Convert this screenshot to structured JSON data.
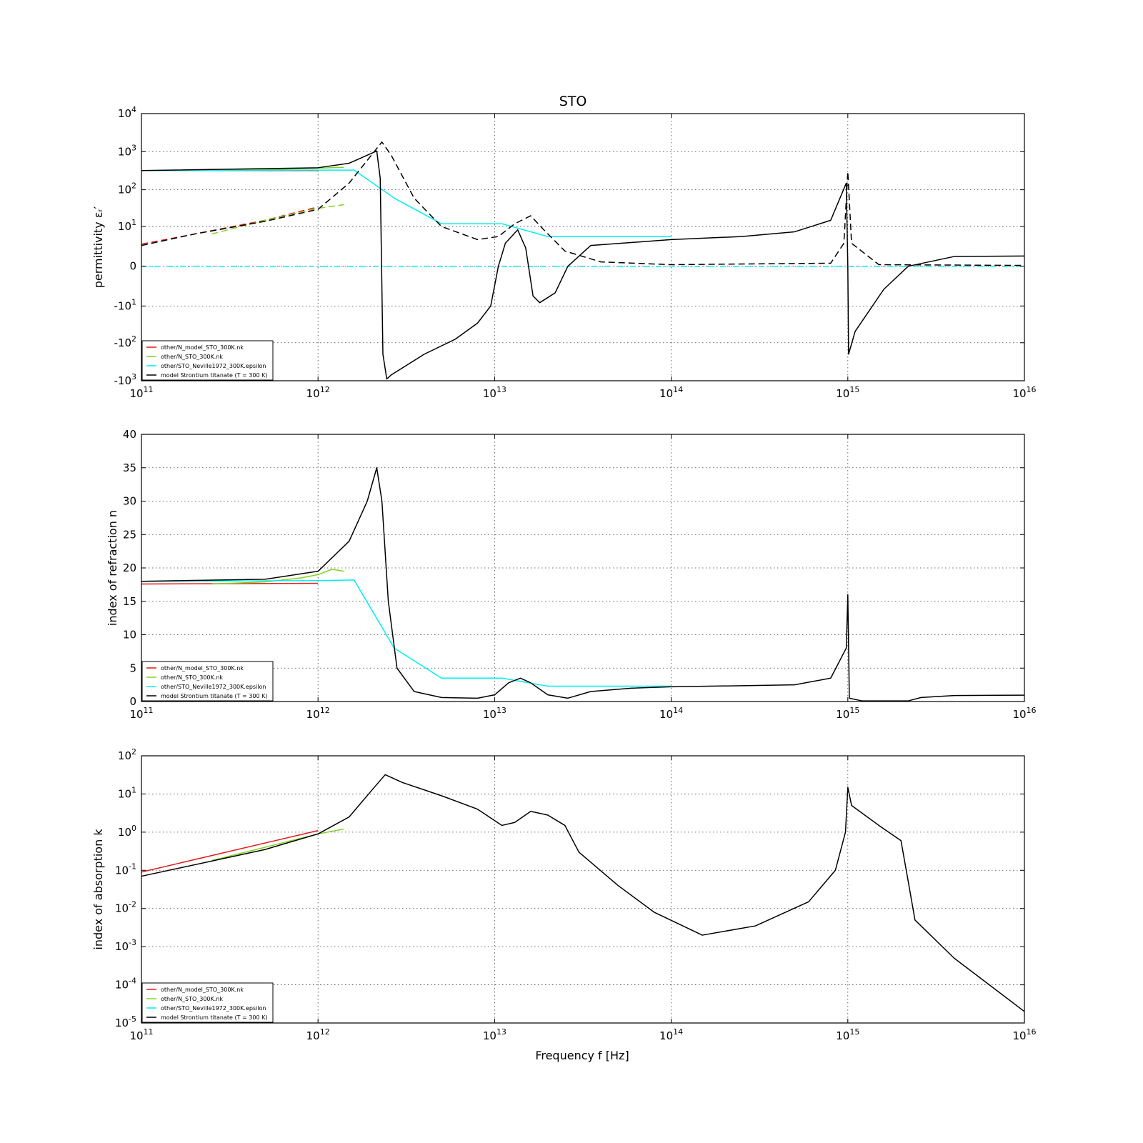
{
  "figure": {
    "title": "STO"
  },
  "colors": {
    "N_model": "#e41a1c",
    "N_STO": "#7fd320",
    "Neville": "#00f0f0",
    "model": "#000000"
  },
  "chart_data": [
    {
      "type": "line",
      "title": "STO",
      "ylabel": "permittivity εᵣ′",
      "xlabel": "",
      "xscale": "log",
      "yscale": "symlog",
      "xlim": [
        100000000000.0,
        1e+16
      ],
      "ylim": [
        -1000,
        10000
      ],
      "grid": true,
      "legend_position": "lower-left",
      "x_ticks": [
        "10^11",
        "10^12",
        "10^13",
        "10^14",
        "10^15",
        "10^16"
      ],
      "y_ticks": [
        "10^4",
        "10^3",
        "10^2",
        "10^1",
        "0",
        "-10^1",
        "-10^2",
        "-10^3"
      ],
      "series": [
        {
          "name": "other/N_model_STO_300K.nk",
          "color_key": "N_model",
          "style": "solid",
          "points": [
            [
              100000000000.0,
              320
            ],
            [
              1000000000000.0,
              320
            ]
          ]
        },
        {
          "name": "other/N_model_STO_300K.nk",
          "color_key": "N_model",
          "style": "dashed",
          "legend": false,
          "points": [
            [
              100000000000.0,
              2.8
            ],
            [
              200000000000.0,
              6
            ],
            [
              500000000000.0,
              15
            ],
            [
              1000000000000.0,
              35
            ]
          ]
        },
        {
          "name": "other/N_STO_300K.nk",
          "color_key": "N_STO",
          "style": "solid",
          "points": [
            [
              250000000000.0,
              330
            ],
            [
              500000000000.0,
              340
            ],
            [
              1000000000000.0,
              370
            ],
            [
              1400000000000.0,
              390
            ]
          ]
        },
        {
          "name": "other/N_STO_300K.nk",
          "color_key": "N_STO",
          "style": "dashed",
          "legend": false,
          "points": [
            [
              250000000000.0,
              6
            ],
            [
              500000000000.0,
              15
            ],
            [
              1000000000000.0,
              32
            ],
            [
              1400000000000.0,
              40
            ]
          ]
        },
        {
          "name": "other/STO_Neville1972_300K.epsilon",
          "color_key": "Neville",
          "style": "solid",
          "points": [
            [
              100000000000.0,
              320
            ],
            [
              1000000000000.0,
              330
            ],
            [
              1600000000000.0,
              330
            ],
            [
              2700000000000.0,
              60
            ],
            [
              5000000000000.0,
              12
            ],
            [
              11000000000000.0,
              12
            ],
            [
              20000000000000.0,
              5
            ],
            [
              40000000000000.0,
              5
            ],
            [
              100000000000000.0,
              5
            ]
          ]
        },
        {
          "name": "other/STO_Neville1972_300K.epsilon",
          "color_key": "Neville",
          "style": "dashdot",
          "legend": false,
          "points": [
            [
              100000000000.0,
              0
            ],
            [
              1e+16,
              0
            ]
          ]
        },
        {
          "name": "model Strontium titanate (T = 300 K)",
          "color_key": "model",
          "style": "solid",
          "points": [
            [
              100000000000.0,
              320
            ],
            [
              1000000000000.0,
              380
            ],
            [
              1500000000000.0,
              500
            ],
            [
              2000000000000.0,
              900
            ],
            [
              2150000000000.0,
              1050
            ],
            [
              2250000000000.0,
              200
            ],
            [
              2330000000000.0,
              -200
            ],
            [
              2450000000000.0,
              -900
            ],
            [
              2600000000000.0,
              -700
            ],
            [
              4000000000000.0,
              -200
            ],
            [
              6000000000000.0,
              -80
            ],
            [
              8000000000000.0,
              -30
            ],
            [
              9500000000000.0,
              -10
            ],
            [
              10500000000000.0,
              0
            ],
            [
              11500000000000.0,
              3
            ],
            [
              13500000000000.0,
              8
            ],
            [
              15000000000000.0,
              2
            ],
            [
              16500000000000.0,
              -5
            ],
            [
              18000000000000.0,
              -8
            ],
            [
              22000000000000.0,
              -4
            ],
            [
              26000000000000.0,
              0
            ],
            [
              35000000000000.0,
              2.5
            ],
            [
              100000000000000.0,
              4
            ],
            [
              250000000000000.0,
              5
            ],
            [
              500000000000000.0,
              7
            ],
            [
              800000000000000.0,
              15
            ],
            [
              980000000000000.0,
              150
            ],
            [
              1000000000000000.0,
              0
            ],
            [
              1010000000000000.0,
              -200
            ],
            [
              1100000000000000.0,
              -50
            ],
            [
              1600000000000000.0,
              -3
            ],
            [
              2200000000000000.0,
              0
            ],
            [
              4000000000000000.0,
              0.8
            ],
            [
              1e+16,
              0.85
            ]
          ]
        },
        {
          "name": "model Strontium titanate (T = 300 K)",
          "color_key": "model",
          "style": "dashed",
          "legend": false,
          "points": [
            [
              100000000000.0,
              2.5
            ],
            [
              200000000000.0,
              6
            ],
            [
              500000000000.0,
              14
            ],
            [
              1000000000000.0,
              30
            ],
            [
              1500000000000.0,
              150
            ],
            [
              2000000000000.0,
              800
            ],
            [
              2300000000000.0,
              1800
            ],
            [
              2600000000000.0,
              800
            ],
            [
              3500000000000.0,
              60
            ],
            [
              5000000000000.0,
              10
            ],
            [
              8000000000000.0,
              4
            ],
            [
              10500000000000.0,
              5
            ],
            [
              13000000000000.0,
              12
            ],
            [
              16000000000000.0,
              20
            ],
            [
              19000000000000.0,
              8
            ],
            [
              25000000000000.0,
              1.5
            ],
            [
              40000000000000.0,
              0.3
            ],
            [
              100000000000000.0,
              0.1
            ],
            [
              800000000000000.0,
              0.2
            ],
            [
              950000000000000.0,
              3
            ],
            [
              1000000000000000.0,
              300
            ],
            [
              1050000000000000.0,
              3
            ],
            [
              1500000000000000.0,
              0.1
            ],
            [
              1e+16,
              0.05
            ]
          ]
        }
      ]
    },
    {
      "type": "line",
      "title": "",
      "ylabel": "index of refraction n",
      "xlabel": "",
      "xscale": "log",
      "yscale": "linear",
      "xlim": [
        100000000000.0,
        1e+16
      ],
      "ylim": [
        0,
        40
      ],
      "grid": true,
      "legend_position": "lower-left",
      "x_ticks": [
        "10^11",
        "10^12",
        "10^13",
        "10^14",
        "10^15",
        "10^16"
      ],
      "y_ticks": [
        "0",
        "5",
        "10",
        "15",
        "20",
        "25",
        "30",
        "35",
        "40"
      ],
      "series": [
        {
          "name": "other/N_model_STO_300K.nk",
          "color_key": "N_model",
          "style": "solid",
          "points": [
            [
              100000000000.0,
              17.6
            ],
            [
              1000000000000.0,
              17.7
            ]
          ]
        },
        {
          "name": "other/N_STO_300K.nk",
          "color_key": "N_STO",
          "style": "solid",
          "points": [
            [
              250000000000.0,
              17.6
            ],
            [
              500000000000.0,
              17.9
            ],
            [
              800000000000.0,
              18.5
            ],
            [
              1000000000000.0,
              19
            ],
            [
              1200000000000.0,
              19.8
            ],
            [
              1400000000000.0,
              19.5
            ]
          ]
        },
        {
          "name": "other/STO_Neville1972_300K.epsilon",
          "color_key": "Neville",
          "style": "solid",
          "points": [
            [
              100000000000.0,
              18
            ],
            [
              1000000000000.0,
              18.1
            ],
            [
              1600000000000.0,
              18.2
            ],
            [
              2700000000000.0,
              8
            ],
            [
              5000000000000.0,
              3.5
            ],
            [
              11000000000000.0,
              3.5
            ],
            [
              20000000000000.0,
              2.3
            ],
            [
              40000000000000.0,
              2.3
            ],
            [
              100000000000000.0,
              2.3
            ]
          ]
        },
        {
          "name": "model Strontium titanate (T = 300 K)",
          "color_key": "model",
          "style": "solid",
          "points": [
            [
              100000000000.0,
              18
            ],
            [
              500000000000.0,
              18.3
            ],
            [
              1000000000000.0,
              19.5
            ],
            [
              1500000000000.0,
              24
            ],
            [
              1900000000000.0,
              30
            ],
            [
              2150000000000.0,
              35
            ],
            [
              2300000000000.0,
              30
            ],
            [
              2500000000000.0,
              15
            ],
            [
              2800000000000.0,
              5
            ],
            [
              3500000000000.0,
              1.5
            ],
            [
              5000000000000.0,
              0.6
            ],
            [
              8000000000000.0,
              0.5
            ],
            [
              10000000000000.0,
              1
            ],
            [
              12000000000000.0,
              2.8
            ],
            [
              14000000000000.0,
              3.5
            ],
            [
              16000000000000.0,
              2.8
            ],
            [
              20000000000000.0,
              1
            ],
            [
              26000000000000.0,
              0.5
            ],
            [
              35000000000000.0,
              1.5
            ],
            [
              60000000000000.0,
              2
            ],
            [
              100000000000000.0,
              2.2
            ],
            [
              500000000000000.0,
              2.5
            ],
            [
              800000000000000.0,
              3.5
            ],
            [
              980000000000000.0,
              8
            ],
            [
              1000000000000000.0,
              16
            ],
            [
              1020000000000000.0,
              0.5
            ],
            [
              1200000000000000.0,
              0.1
            ],
            [
              2200000000000000.0,
              0.1
            ],
            [
              2600000000000000.0,
              0.6
            ],
            [
              4000000000000000.0,
              0.9
            ],
            [
              1e+16,
              0.95
            ]
          ]
        }
      ]
    },
    {
      "type": "line",
      "title": "",
      "ylabel": "index of absorption k",
      "xlabel": "Frequency f [Hz]",
      "xscale": "log",
      "yscale": "log",
      "xlim": [
        100000000000.0,
        1e+16
      ],
      "ylim": [
        1e-05,
        100
      ],
      "grid": true,
      "legend_position": "lower-left",
      "x_ticks": [
        "10^11",
        "10^12",
        "10^13",
        "10^14",
        "10^15",
        "10^16"
      ],
      "y_ticks": [
        "10^2",
        "10^1",
        "10^0",
        "10^-1",
        "10^-2",
        "10^-3",
        "10^-4",
        "10^-5"
      ],
      "series": [
        {
          "name": "other/N_model_STO_300K.nk",
          "color_key": "N_model",
          "style": "solid",
          "points": [
            [
              100000000000.0,
              0.09
            ],
            [
              1000000000000.0,
              1.1
            ]
          ]
        },
        {
          "name": "other/N_STO_300K.nk",
          "color_key": "N_STO",
          "style": "solid",
          "points": [
            [
              250000000000.0,
              0.18
            ],
            [
              500000000000.0,
              0.4
            ],
            [
              1000000000000.0,
              0.9
            ],
            [
              1400000000000.0,
              1.2
            ]
          ]
        },
        {
          "name": "other/STO_Neville1972_300K.epsilon",
          "color_key": "Neville",
          "style": "solid",
          "points": []
        },
        {
          "name": "model Strontium titanate (T = 300 K)",
          "color_key": "model",
          "style": "solid",
          "points": [
            [
              100000000000.0,
              0.07
            ],
            [
              500000000000.0,
              0.35
            ],
            [
              1000000000000.0,
              0.9
            ],
            [
              1500000000000.0,
              2.5
            ],
            [
              2000000000000.0,
              12
            ],
            [
              2400000000000.0,
              32
            ],
            [
              3000000000000.0,
              20
            ],
            [
              5000000000000.0,
              9
            ],
            [
              8000000000000.0,
              4
            ],
            [
              11000000000000.0,
              1.5
            ],
            [
              13000000000000.0,
              1.8
            ],
            [
              16000000000000.0,
              3.5
            ],
            [
              20000000000000.0,
              2.8
            ],
            [
              25000000000000.0,
              1.5
            ],
            [
              30000000000000.0,
              0.3
            ],
            [
              50000000000000.0,
              0.04
            ],
            [
              80000000000000.0,
              0.008
            ],
            [
              150000000000000.0,
              0.002
            ],
            [
              300000000000000.0,
              0.0035
            ],
            [
              600000000000000.0,
              0.015
            ],
            [
              850000000000000.0,
              0.1
            ],
            [
              970000000000000.0,
              1
            ],
            [
              1000000000000000.0,
              15
            ],
            [
              1050000000000000.0,
              5
            ],
            [
              1500000000000000.0,
              1.5
            ],
            [
              2000000000000000.0,
              0.6
            ],
            [
              2200000000000000.0,
              0.05
            ],
            [
              2400000000000000.0,
              0.005
            ],
            [
              4000000000000000.0,
              0.0005
            ],
            [
              1e+16,
              2e-05
            ]
          ]
        }
      ]
    }
  ]
}
